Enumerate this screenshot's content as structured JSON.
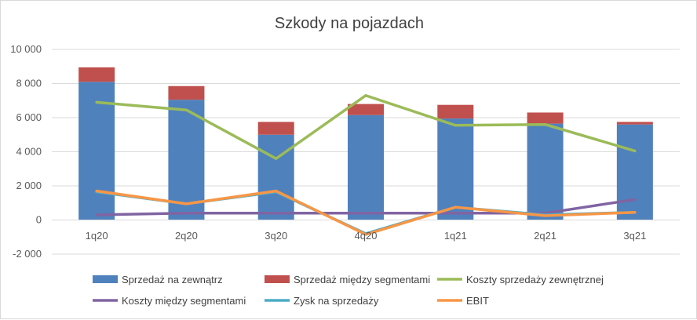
{
  "chart_data": {
    "type": "bar",
    "title": "Szkody na pojazdach",
    "categories": [
      "1q20",
      "2q20",
      "3q20",
      "4q20",
      "1q21",
      "2q21",
      "3q21"
    ],
    "ylim": [
      -2000,
      10000
    ],
    "yticks": [
      -2000,
      0,
      2000,
      4000,
      6000,
      8000,
      10000
    ],
    "ytick_labels": [
      "-2 000",
      "0",
      "2 000",
      "4 000",
      "6 000",
      "8 000",
      "10 000"
    ],
    "grid": true,
    "legend_position": "bottom",
    "stacked_bars": [
      {
        "name": "Sprzedaż na zewnątrz",
        "color": "#4f81bd",
        "values": [
          8100,
          7050,
          5000,
          6150,
          5950,
          5650,
          5600
        ]
      },
      {
        "name": "Sprzedaż między segmentami",
        "color": "#c0504d",
        "values": [
          850,
          800,
          750,
          650,
          800,
          650,
          150
        ]
      }
    ],
    "lines": [
      {
        "name": "Koszty sprzedaży zewnętrznej",
        "color": "#9bbb59",
        "values": [
          6900,
          6450,
          3600,
          7300,
          5550,
          5600,
          4050
        ]
      },
      {
        "name": "Koszty między segmentami",
        "color": "#8064a2",
        "values": [
          300,
          400,
          400,
          400,
          400,
          400,
          1200
        ]
      },
      {
        "name": "Zysk na sprzedaży",
        "color": "#4bacc6",
        "values": [
          1650,
          950,
          1650,
          -800,
          750,
          300,
          450
        ]
      },
      {
        "name": "EBIT",
        "color": "#f79646",
        "values": [
          1700,
          950,
          1700,
          -850,
          750,
          250,
          450
        ]
      }
    ]
  }
}
